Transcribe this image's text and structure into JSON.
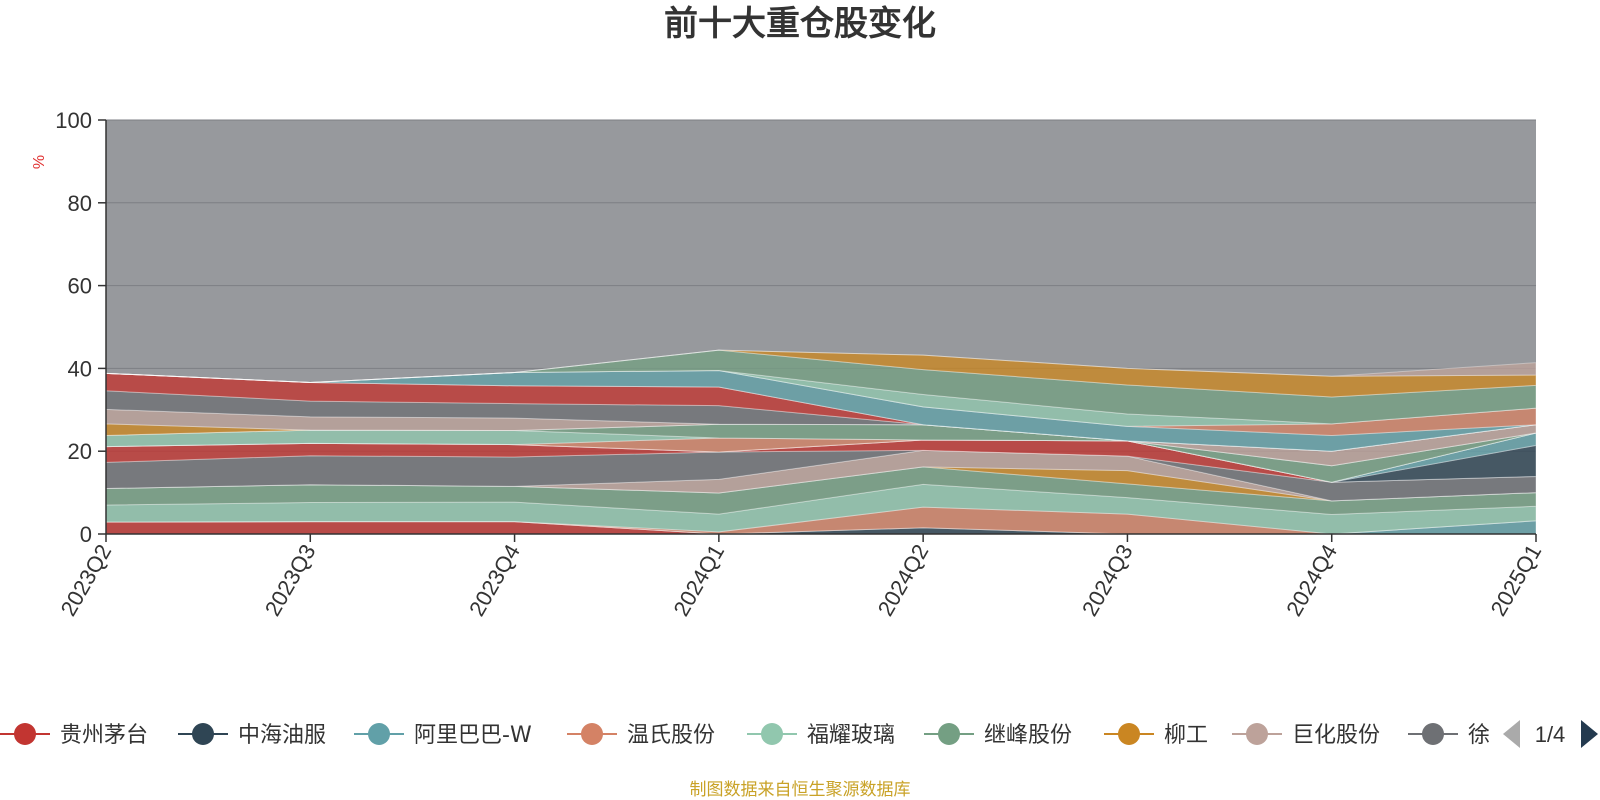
{
  "colors": {
    "background_band": "#97999d",
    "axis": "#333333",
    "grid": "#7d7f84",
    "source_text": "#c9a227",
    "unit_text": "#e03131",
    "pager_arrow": "#243a4f",
    "pager_arrow_disabled": "#aaaaaa"
  },
  "chart_data": {
    "type": "area",
    "stacked": true,
    "title": "前十大重仓股变化",
    "ylabel": "%",
    "ylim": [
      0,
      100
    ],
    "yticks": [
      0,
      20,
      40,
      60,
      80,
      100
    ],
    "grid": true,
    "legend_position": "bottom",
    "categories": [
      "2023Q2",
      "2023Q3",
      "2023Q4",
      "2024Q1",
      "2024Q2",
      "2024Q3",
      "2024Q4",
      "2025Q1"
    ],
    "series": [
      {
        "name": "贵州茅台",
        "color": "#c23531",
        "values": [
          2.9,
          3.0,
          3.0,
          0,
          0,
          0,
          0,
          0
        ]
      },
      {
        "name": "中海油服",
        "color": "#2f4554",
        "values": [
          0,
          0,
          0,
          0,
          1.5,
          0,
          0,
          0
        ]
      },
      {
        "name": "阿里巴巴-W",
        "color": "#61a0a8",
        "values": [
          0,
          0,
          0,
          0,
          0,
          0,
          0,
          3.2
        ]
      },
      {
        "name": "温氏股份",
        "color": "#d48265",
        "values": [
          0,
          0,
          0,
          0.5,
          5.0,
          4.8,
          0,
          0
        ]
      },
      {
        "name": "福耀玻璃",
        "color": "#91c7ae",
        "values": [
          4.1,
          4.6,
          4.7,
          4.3,
          5.5,
          4.0,
          4.7,
          3.5
        ]
      },
      {
        "name": "继峰股份",
        "color": "#749f83",
        "values": [
          4.0,
          4.3,
          3.8,
          5.1,
          4.2,
          3.3,
          3.3,
          3.3
        ]
      },
      {
        "name": "柳工",
        "color": "#ca8622",
        "values": [
          0,
          0,
          0,
          0,
          0,
          3.2,
          0,
          0
        ]
      },
      {
        "name": "巨化股份",
        "color": "#bda29a",
        "values": [
          0,
          0,
          0,
          3.3,
          4.0,
          3.5,
          0,
          0
        ]
      },
      {
        "name": "徐工机械",
        "color": "#6e7074",
        "values": [
          6.3,
          7.0,
          7.1,
          6.6,
          0,
          0,
          4.5,
          3.9
        ]
      },
      {
        "name": "贵州茅台",
        "color": "#c23531",
        "values": [
          3.8,
          3.0,
          3.0,
          0,
          2.5,
          3.7,
          0,
          0
        ]
      },
      {
        "name": "中海油服",
        "color": "#2f4554",
        "values": [
          0,
          0,
          0,
          0,
          0,
          0,
          0,
          7.5
        ]
      },
      {
        "name": "阿里巴巴-W",
        "color": "#61a0a8",
        "values": [
          0,
          0,
          0,
          0,
          0,
          0,
          0,
          3.0
        ]
      },
      {
        "name": "温氏股份",
        "color": "#d48265",
        "values": [
          0,
          0,
          0,
          3.4,
          0,
          0,
          0,
          0
        ]
      },
      {
        "name": "福耀玻璃",
        "color": "#91c7ae",
        "values": [
          2.7,
          3.2,
          3.4,
          0,
          0,
          0,
          0,
          0
        ]
      },
      {
        "name": "继峰股份",
        "color": "#749f83",
        "values": [
          0,
          0,
          0,
          3.3,
          3.7,
          0,
          4.0,
          0
        ]
      },
      {
        "name": "柳工",
        "color": "#ca8622",
        "values": [
          2.8,
          0,
          0,
          0,
          0,
          0,
          0,
          0
        ]
      },
      {
        "name": "巨化股份",
        "color": "#bda29a",
        "values": [
          3.5,
          3.2,
          3.0,
          0,
          0,
          0,
          3.5,
          2.0
        ]
      },
      {
        "name": "徐工机械",
        "color": "#6e7074",
        "values": [
          4.5,
          3.8,
          3.5,
          4.5,
          0,
          0,
          0,
          0
        ]
      },
      {
        "name": "贵州茅台",
        "color": "#c23531",
        "values": [
          4.2,
          4.5,
          4.3,
          4.5,
          0,
          0,
          0,
          0
        ]
      },
      {
        "name": "中海油服",
        "color": "#2f4554",
        "values": [
          0,
          0,
          0,
          0,
          0,
          0,
          0,
          0
        ]
      },
      {
        "name": "阿里巴巴-W",
        "color": "#61a0a8",
        "values": [
          0,
          0,
          3.2,
          4.0,
          4.3,
          3.5,
          3.8,
          0
        ]
      },
      {
        "name": "温氏股份",
        "color": "#d48265",
        "values": [
          0,
          0,
          0,
          0,
          0,
          0,
          2.8,
          4.0
        ]
      },
      {
        "name": "福耀玻璃",
        "color": "#91c7ae",
        "values": [
          0,
          0,
          0,
          0,
          3.0,
          3.0,
          0,
          0
        ]
      },
      {
        "name": "继峰股份",
        "color": "#749f83",
        "values": [
          0,
          0,
          0,
          4.9,
          6.0,
          7.0,
          6.5,
          5.5
        ]
      },
      {
        "name": "柳工",
        "color": "#ca8622",
        "values": [
          0,
          0,
          0,
          0,
          3.5,
          4.0,
          5.0,
          2.5
        ]
      },
      {
        "name": "巨化股份",
        "color": "#bda29a",
        "values": [
          0,
          0,
          0,
          0,
          0,
          0,
          0,
          3.0
        ]
      }
    ],
    "rest_band": "100 minus stacked total (grey background area)"
  },
  "legend": {
    "items": [
      {
        "label": "贵州茅台",
        "color": "#c23531"
      },
      {
        "label": "中海油服",
        "color": "#2f4554"
      },
      {
        "label": "阿里巴巴-W",
        "color": "#61a0a8"
      },
      {
        "label": "温氏股份",
        "color": "#d48265"
      },
      {
        "label": "福耀玻璃",
        "color": "#91c7ae"
      },
      {
        "label": "继峰股份",
        "color": "#749f83"
      },
      {
        "label": "柳工",
        "color": "#ca8622"
      },
      {
        "label": "巨化股份",
        "color": "#bda29a"
      },
      {
        "label": "徐",
        "color": "#6e7074"
      }
    ],
    "page_indicator": "1/4"
  },
  "footer": {
    "source": "制图数据来自恒生聚源数据库"
  }
}
